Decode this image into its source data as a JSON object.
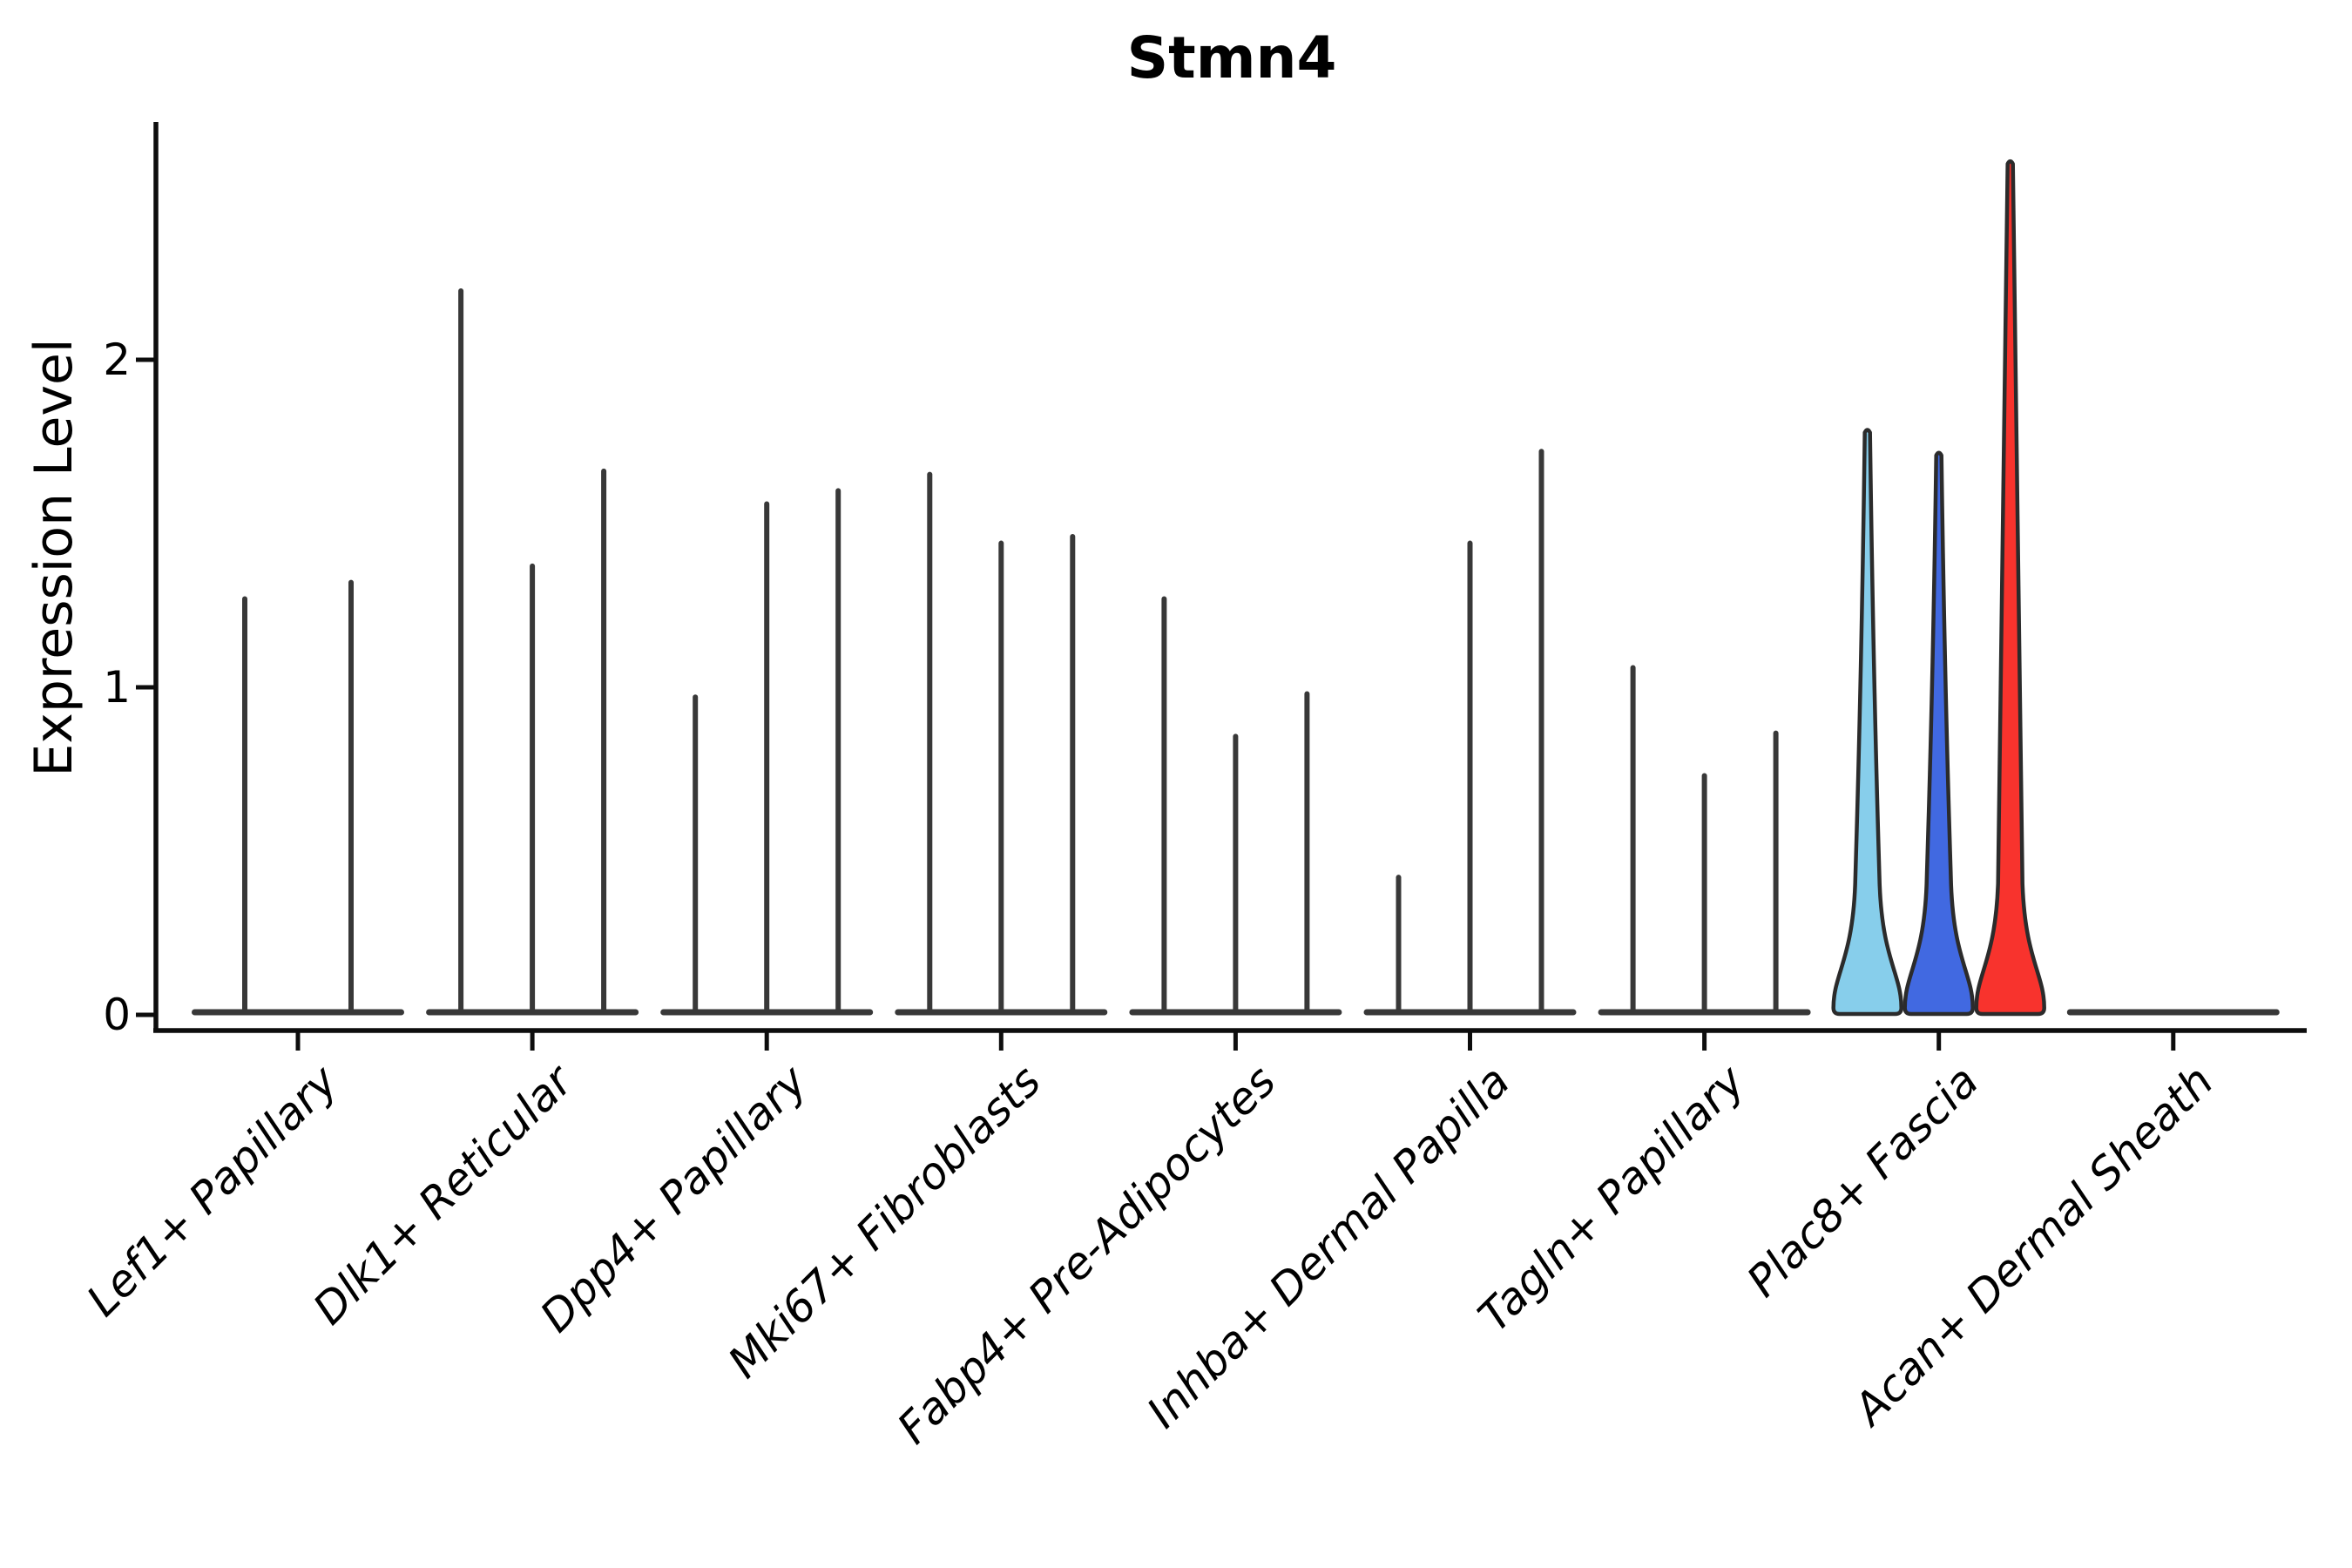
{
  "figure": {
    "title": "Stmn4",
    "ylabel": "Expression Level",
    "background": "#ffffff"
  },
  "chart_data": {
    "type": "violin",
    "title": "Stmn4",
    "xlabel": "",
    "ylabel": "Expression Level",
    "yticks": [
      0,
      1,
      2
    ],
    "ylim": [
      -0.06,
      2.72
    ],
    "grid": false,
    "legend": "none",
    "axis_color": "#0d0d0d",
    "violin_default_color": "#383838",
    "highlight_colors": [
      "#87CEEB",
      "#4169E1",
      "#F8332D"
    ],
    "categories": [
      "Lef1+ Papillary",
      "Dlk1+ Reticular",
      "Dpp4+ Papillary",
      "Mki67+ Fibroblasts",
      "Fabp4+ Pre-Adipocytes",
      "Inhba+ Dermal Papilla",
      "Tagln+ Papillary",
      "Plac8+ Fascia",
      "Acan+ Dermal Sheath"
    ],
    "series": [
      {
        "category": "Lef1+ Papillary",
        "violins": [
          {
            "max": 1.27
          },
          {
            "max": 1.32
          }
        ]
      },
      {
        "category": "Dlk1+ Reticular",
        "violins": [
          {
            "max": 2.21
          },
          {
            "max": 1.37
          },
          {
            "max": 1.66
          }
        ]
      },
      {
        "category": "Dpp4+ Papillary",
        "violins": [
          {
            "max": 0.97
          },
          {
            "max": 1.56
          },
          {
            "max": 1.6
          }
        ]
      },
      {
        "category": "Mki67+ Fibroblasts",
        "violins": [
          {
            "max": 1.65
          },
          {
            "max": 1.44
          },
          {
            "max": 1.46
          }
        ]
      },
      {
        "category": "Fabp4+ Pre-Adipocytes",
        "violins": [
          {
            "max": 1.27
          },
          {
            "max": 0.85
          },
          {
            "max": 0.98
          }
        ]
      },
      {
        "category": "Inhba+ Dermal Papilla",
        "violins": [
          {
            "max": 0.42
          },
          {
            "max": 1.44
          },
          {
            "max": 1.72
          }
        ]
      },
      {
        "category": "Tagln+ Papillary",
        "violins": [
          {
            "max": 1.06
          },
          {
            "max": 0.73
          },
          {
            "max": 0.86
          }
        ]
      },
      {
        "category": "Plac8+ Fascia",
        "violins": [
          {
            "max": 1.77,
            "color": "#87CEEB"
          },
          {
            "max": 1.7,
            "color": "#4169E1"
          },
          {
            "max": 2.59,
            "color": "#F8332D"
          }
        ]
      },
      {
        "category": "Acan+ Dermal Sheath",
        "violins": []
      }
    ]
  }
}
